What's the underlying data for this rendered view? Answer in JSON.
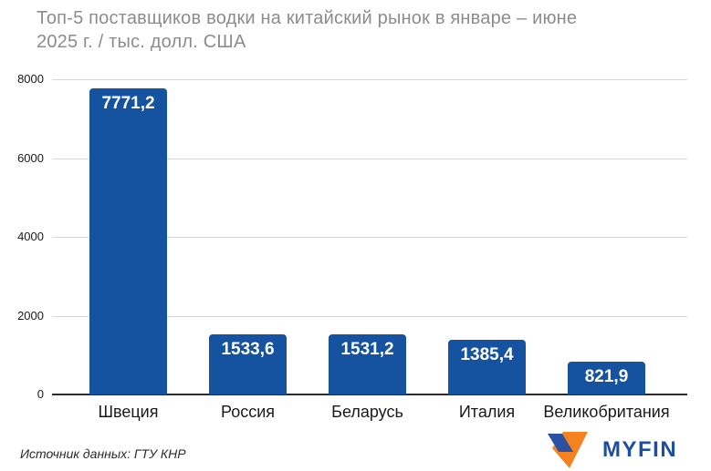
{
  "title": {
    "line1": "Топ-5 поставщиков водки на китайский рынок в январе – июне",
    "line2": "2025 г. / тыс. долл. США"
  },
  "footer": {
    "source": "Источник данных: ГТУ КНР",
    "logo_text": "MYFIN"
  },
  "colors": {
    "bar": "#1553A0",
    "title": "#8C8C8C",
    "grid": "#D8D8D8",
    "axis": "#2B2B2B",
    "tick": "#1A1A1A",
    "value_label": "#FFFFFF",
    "source": "#2B2B2B",
    "logo_blue": "#1D4F9E",
    "logo_icon_blue": "#2B52A2",
    "logo_icon_orange": "#F5821F"
  },
  "chart_data": {
    "type": "bar",
    "title": "Топ-5 поставщиков водки на китайский рынок в январе – июне 2025 г. / тыс. долл. США",
    "categories": [
      "Швеция",
      "Россия",
      "Беларусь",
      "Италия",
      "Великобритания"
    ],
    "values": [
      7771.2,
      1533.6,
      1531.2,
      1385.4,
      821.9
    ],
    "value_labels": [
      "7771,2",
      "1533,6",
      "1531,2",
      "1385,4",
      "821,9"
    ],
    "xlabel": "",
    "ylabel": "",
    "ylim": [
      0,
      8000
    ],
    "yticks": [
      0,
      2000,
      4000,
      6000,
      8000
    ],
    "grid": true,
    "legend": false
  }
}
